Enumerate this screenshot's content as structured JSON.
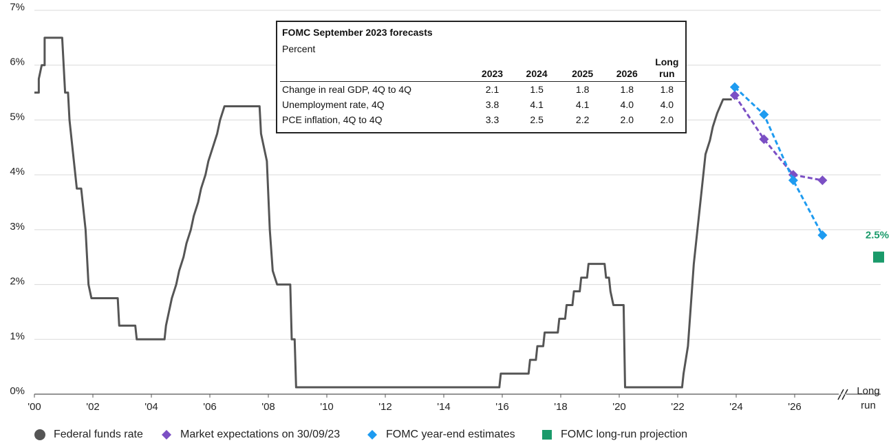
{
  "chart_data": {
    "type": "line",
    "xlim": [
      2000,
      2027.6
    ],
    "xticks": [
      {
        "value": 2000,
        "label": "'00"
      },
      {
        "value": 2002,
        "label": "'02"
      },
      {
        "value": 2004,
        "label": "'04"
      },
      {
        "value": 2006,
        "label": "'06"
      },
      {
        "value": 2008,
        "label": "'08"
      },
      {
        "value": 2010,
        "label": "'10"
      },
      {
        "value": 2012,
        "label": "'12"
      },
      {
        "value": 2014,
        "label": "'14"
      },
      {
        "value": 2016,
        "label": "'16"
      },
      {
        "value": 2018,
        "label": "'18"
      },
      {
        "value": 2020,
        "label": "'20"
      },
      {
        "value": 2022,
        "label": "'22"
      },
      {
        "value": 2024,
        "label": "'24"
      },
      {
        "value": 2026,
        "label": "'26"
      }
    ],
    "ylim": [
      0,
      7
    ],
    "yticks": [
      {
        "value": 0,
        "label": "0%"
      },
      {
        "value": 1,
        "label": "1%"
      },
      {
        "value": 2,
        "label": "2%"
      },
      {
        "value": 3,
        "label": "3%"
      },
      {
        "value": 4,
        "label": "4%"
      },
      {
        "value": 5,
        "label": "5%"
      },
      {
        "value": 6,
        "label": "6%"
      },
      {
        "value": 7,
        "label": "7%"
      }
    ],
    "grid": true,
    "long_run_label": "Long run",
    "series": [
      {
        "name": "Federal funds rate",
        "color": "#555555",
        "style": "line",
        "x": [
          2000.0,
          2000.15,
          2000.15,
          2000.25,
          2000.35,
          2000.35,
          2000.95,
          2001.0,
          2001.05,
          2001.15,
          2001.2,
          2001.3,
          2001.4,
          2001.45,
          2001.6,
          2001.65,
          2001.75,
          2001.8,
          2001.85,
          2001.95,
          2002.85,
          2002.9,
          2003.45,
          2003.5,
          2004.45,
          2004.5,
          2004.6,
          2004.7,
          2004.85,
          2004.95,
          2005.1,
          2005.2,
          2005.35,
          2005.45,
          2005.6,
          2005.7,
          2005.85,
          2005.95,
          2006.1,
          2006.25,
          2006.35,
          2006.5,
          2007.7,
          2007.75,
          2007.85,
          2007.95,
          2008.05,
          2008.15,
          2008.3,
          2008.75,
          2008.8,
          2008.9,
          2008.95,
          2015.9,
          2015.95,
          2016.9,
          2016.95,
          2017.15,
          2017.2,
          2017.4,
          2017.45,
          2017.9,
          2017.95,
          2018.15,
          2018.2,
          2018.4,
          2018.45,
          2018.65,
          2018.7,
          2018.9,
          2018.95,
          2019.5,
          2019.55,
          2019.65,
          2019.7,
          2019.8,
          2020.15,
          2020.2,
          2022.15,
          2022.2,
          2022.35,
          2022.45,
          2022.55,
          2022.7,
          2022.85,
          2022.95,
          2023.1,
          2023.2,
          2023.35,
          2023.55,
          2023.85
        ],
        "values": [
          5.5,
          5.5,
          5.75,
          6.0,
          6.0,
          6.5,
          6.5,
          6.0,
          5.5,
          5.5,
          5.0,
          4.5,
          4.0,
          3.75,
          3.75,
          3.5,
          3.0,
          2.5,
          2.0,
          1.75,
          1.75,
          1.25,
          1.25,
          1.0,
          1.0,
          1.25,
          1.5,
          1.75,
          2.0,
          2.25,
          2.5,
          2.75,
          3.0,
          3.25,
          3.5,
          3.75,
          4.0,
          4.25,
          4.5,
          4.75,
          5.0,
          5.25,
          5.25,
          4.75,
          4.5,
          4.25,
          3.0,
          2.25,
          2.0,
          2.0,
          1.0,
          1.0,
          0.125,
          0.125,
          0.375,
          0.375,
          0.625,
          0.625,
          0.875,
          0.875,
          1.125,
          1.125,
          1.375,
          1.375,
          1.625,
          1.625,
          1.875,
          1.875,
          2.125,
          2.125,
          2.375,
          2.375,
          2.125,
          2.125,
          1.875,
          1.625,
          1.625,
          0.125,
          0.125,
          0.375,
          0.875,
          1.625,
          2.375,
          3.125,
          3.875,
          4.375,
          4.625,
          4.875,
          5.125,
          5.375,
          5.375
        ]
      },
      {
        "name": "Market expectations on 30/09/23",
        "color": "#7b4fc4",
        "style": "dashed-diamond",
        "x": [
          2023.95,
          2024.95,
          2025.95,
          2026.95
        ],
        "values": [
          5.45,
          4.65,
          4.0,
          3.9
        ]
      },
      {
        "name": "FOMC year-end estimates",
        "color": "#1e9bf0",
        "style": "dashed-diamond",
        "x": [
          2023.95,
          2024.95,
          2025.95,
          2026.95
        ],
        "values": [
          5.6,
          5.1,
          3.9,
          2.9
        ]
      },
      {
        "name": "FOMC long-run projection",
        "color": "#1a9a6a",
        "style": "long-run-square",
        "values": [
          2.5
        ],
        "value_labels": [
          "2.5%"
        ]
      }
    ]
  },
  "table": {
    "title": "FOMC September 2023 forecasts",
    "subtitle": "Percent",
    "columns": [
      "2023",
      "2024",
      "2025",
      "2026",
      "Long run"
    ],
    "rows": [
      {
        "label": "Change in real GDP, 4Q to 4Q",
        "values": [
          "2.1",
          "1.5",
          "1.8",
          "1.8",
          "1.8"
        ]
      },
      {
        "label": "Unemployment rate, 4Q",
        "values": [
          "3.8",
          "4.1",
          "4.1",
          "4.0",
          "4.0"
        ]
      },
      {
        "label": "PCE inflation, 4Q to 4Q",
        "values": [
          "3.3",
          "2.5",
          "2.2",
          "2.0",
          "2.0"
        ]
      }
    ]
  }
}
